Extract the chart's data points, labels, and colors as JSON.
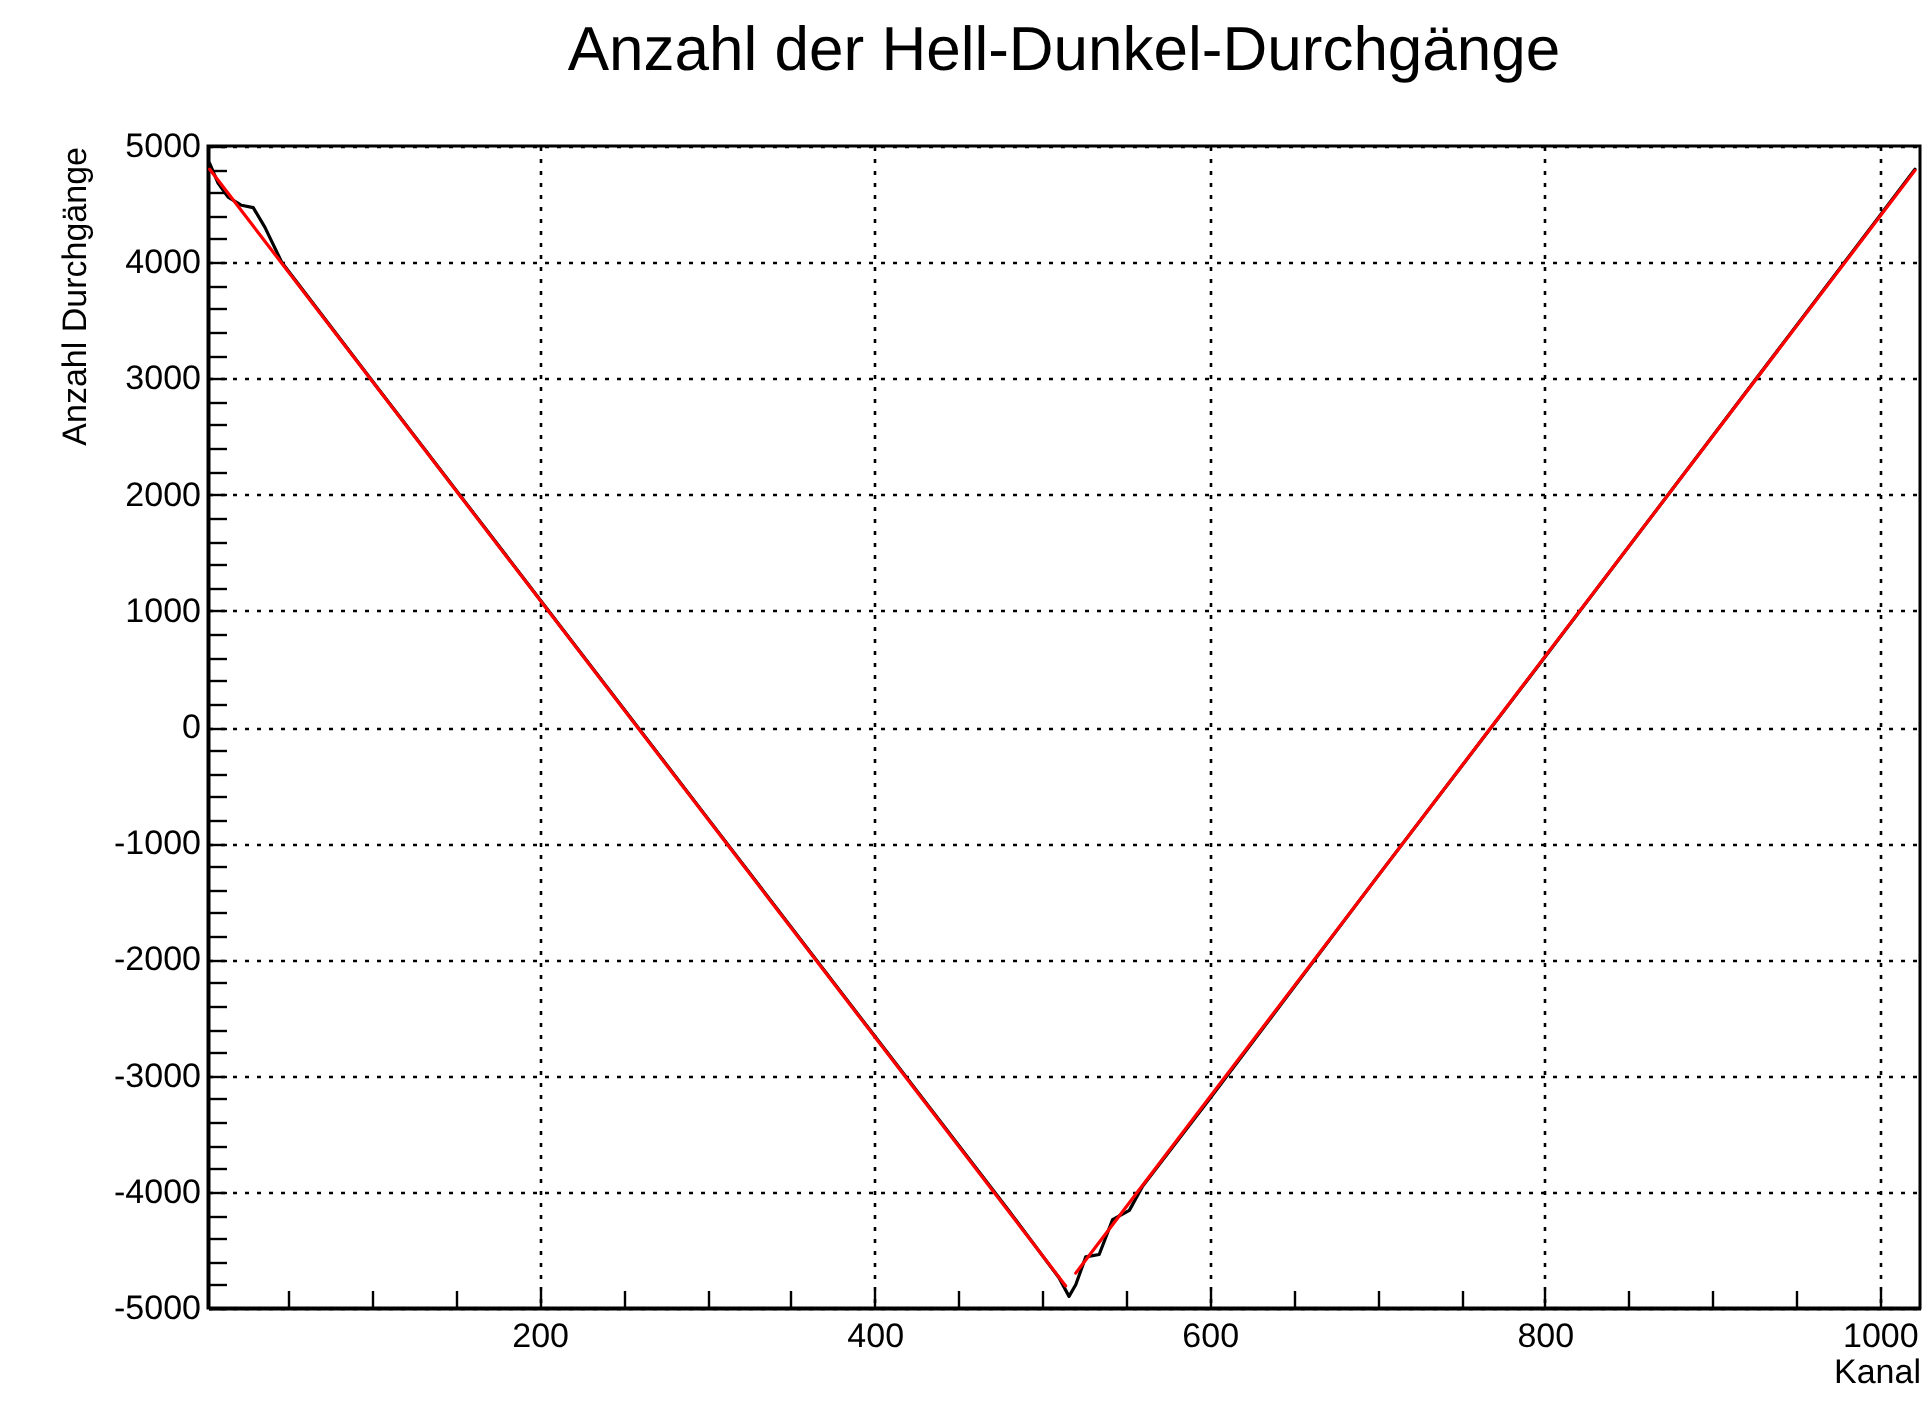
{
  "chart_data": {
    "type": "line",
    "title": "Anzahl der Hell-Dunkel-Durchgänge",
    "xlabel": "Kanal",
    "ylabel": "Anzahl Durchgänge",
    "xlim": [
      2,
      1024
    ],
    "ylim": [
      -5000,
      5000
    ],
    "xticks": [
      {
        "value": 50,
        "label": null
      },
      {
        "value": 100,
        "label": null
      },
      {
        "value": 150,
        "label": null
      },
      200,
      {
        "value": 250,
        "label": null
      },
      {
        "value": 300,
        "label": null
      },
      {
        "value": 350,
        "label": null
      },
      400,
      {
        "value": 450,
        "label": null
      },
      {
        "value": 500,
        "label": null
      },
      {
        "value": 550,
        "label": null
      },
      600,
      {
        "value": 650,
        "label": null
      },
      {
        "value": 700,
        "label": null
      },
      {
        "value": 750,
        "label": null
      },
      800,
      {
        "value": 850,
        "label": null
      },
      {
        "value": 900,
        "label": null
      },
      {
        "value": 950,
        "label": null
      },
      1000
    ],
    "yticks": [
      -5000,
      {
        "value": -4800,
        "label": null
      },
      {
        "value": -4600,
        "label": null
      },
      {
        "value": -4400,
        "label": null
      },
      {
        "value": -4200,
        "label": null
      },
      -4000,
      {
        "value": -3800,
        "label": null
      },
      {
        "value": -3600,
        "label": null
      },
      {
        "value": -3400,
        "label": null
      },
      {
        "value": -3200,
        "label": null
      },
      -3000,
      {
        "value": -2800,
        "label": null
      },
      {
        "value": -2600,
        "label": null
      },
      {
        "value": -2400,
        "label": null
      },
      {
        "value": -2200,
        "label": null
      },
      -2000,
      {
        "value": -1800,
        "label": null
      },
      {
        "value": -1600,
        "label": null
      },
      {
        "value": -1400,
        "label": null
      },
      {
        "value": -1200,
        "label": null
      },
      -1000,
      {
        "value": -800,
        "label": null
      },
      {
        "value": -600,
        "label": null
      },
      {
        "value": -400,
        "label": null
      },
      {
        "value": -200,
        "label": null
      },
      0,
      {
        "value": 200,
        "label": null
      },
      {
        "value": 400,
        "label": null
      },
      {
        "value": 600,
        "label": null
      },
      {
        "value": 800,
        "label": null
      },
      1000,
      {
        "value": 1200,
        "label": null
      },
      {
        "value": 1400,
        "label": null
      },
      {
        "value": 1600,
        "label": null
      },
      {
        "value": 1800,
        "label": null
      },
      2000,
      {
        "value": 2200,
        "label": null
      },
      {
        "value": 2400,
        "label": null
      },
      {
        "value": 2600,
        "label": null
      },
      {
        "value": 2800,
        "label": null
      },
      3000,
      {
        "value": 3200,
        "label": null
      },
      {
        "value": 3400,
        "label": null
      },
      {
        "value": 3600,
        "label": null
      },
      {
        "value": 3800,
        "label": null
      },
      4000,
      {
        "value": 4200,
        "label": null
      },
      {
        "value": 4400,
        "label": null
      },
      {
        "value": 4600,
        "label": null
      },
      {
        "value": 4800,
        "label": null
      },
      5000
    ],
    "grid": true,
    "line_style": "solid",
    "marker": "none",
    "series": [
      {
        "color": "#000000",
        "x": [
          3,
          8,
          14,
          22,
          29,
          36,
          46,
          100,
          200,
          300,
          400,
          480,
          510,
          516,
          520,
          526,
          534,
          542,
          552,
          560,
          600,
          700,
          800,
          900,
          1000,
          1021
        ],
        "values": [
          4850,
          4680,
          4560,
          4490,
          4470,
          4300,
          4000,
          2980,
          1100,
          -780,
          -2660,
          -4160,
          -4740,
          -4900,
          -4800,
          -4560,
          -4540,
          -4240,
          -4160,
          -3950,
          -3200,
          -1290,
          600,
          2500,
          4400,
          4800
        ]
      },
      {
        "color": "#ff0000",
        "x": [
          3,
          514
        ],
        "values": [
          4800,
          -4810
        ]
      },
      {
        "color": "#ff0000",
        "x": [
          520,
          1021
        ],
        "values": [
          -4700,
          4790
        ]
      }
    ]
  }
}
